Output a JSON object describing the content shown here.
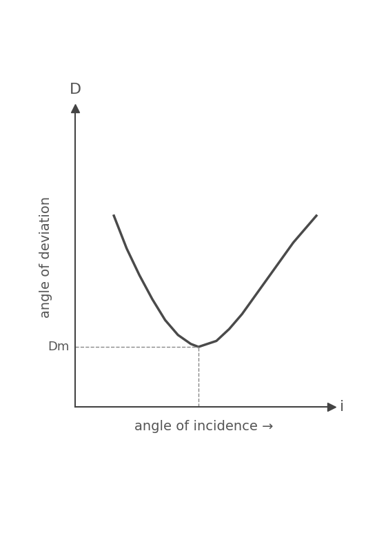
{
  "chart_data": {
    "type": "line",
    "x": [
      1.5,
      2,
      2.5,
      3,
      3.5,
      4,
      4.5,
      4.8,
      5.5,
      6,
      6.5,
      7,
      7.5,
      8,
      8.5,
      9,
      9.4
    ],
    "values": [
      6.4,
      5.3,
      4.4,
      3.6,
      2.9,
      2.4,
      2.1,
      2.0,
      2.2,
      2.6,
      3.1,
      3.7,
      4.3,
      4.9,
      5.5,
      6.0,
      6.4
    ],
    "color": "#4a4a4a",
    "xlim": [
      0,
      10
    ],
    "ylim": [
      0,
      10
    ],
    "xticks": [],
    "yticks": [],
    "tick_labels": false,
    "x_label": "angle of incidence →",
    "y_label": "angle of deviation",
    "x_axis_symbol": "i",
    "y_axis_symbol": "D",
    "annotations": [
      {
        "text": "Dm",
        "x": 4.8,
        "y": 2.0
      }
    ]
  }
}
